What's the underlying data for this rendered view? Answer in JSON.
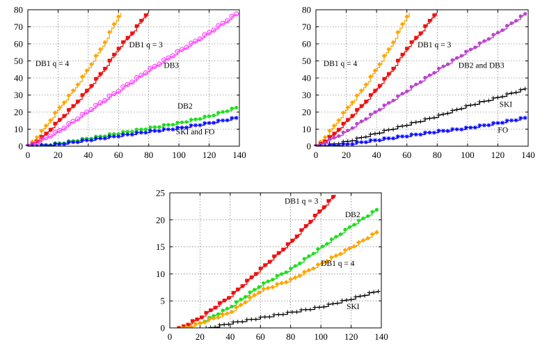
{
  "chart_data": [
    {
      "type": "line",
      "xlim": [
        0,
        140
      ],
      "ylim": [
        0,
        80
      ],
      "xticks": [
        0,
        20,
        40,
        60,
        80,
        100,
        120,
        140
      ],
      "yticks": [
        0,
        10,
        20,
        30,
        40,
        50,
        60,
        70,
        80
      ],
      "grid": true,
      "series": [
        {
          "color": "#ffa500",
          "marker": "diamond",
          "points": [
            [
              0,
              0
            ],
            [
              10,
              10
            ],
            [
              20,
              22
            ],
            [
              30,
              33
            ],
            [
              40,
              46
            ],
            [
              50,
              60
            ],
            [
              57,
              72
            ],
            [
              62,
              80
            ]
          ]
        },
        {
          "color": "#ee1111",
          "marker": "square",
          "points": [
            [
              0,
              0
            ],
            [
              10,
              6
            ],
            [
              20,
              15
            ],
            [
              30,
              24
            ],
            [
              40,
              34
            ],
            [
              50,
              45
            ],
            [
              60,
              58
            ],
            [
              70,
              68
            ],
            [
              80,
              80
            ]
          ]
        },
        {
          "color": "#ff44ff",
          "marker": "circle-open",
          "points": [
            [
              0,
              0
            ],
            [
              20,
              9
            ],
            [
              40,
              21
            ],
            [
              60,
              33
            ],
            [
              80,
              45
            ],
            [
              100,
              56
            ],
            [
              120,
              67
            ],
            [
              138,
              78
            ]
          ]
        },
        {
          "color": "#22dd22",
          "marker": "circle",
          "points": [
            [
              0,
              0
            ],
            [
              20,
              2
            ],
            [
              40,
              5
            ],
            [
              60,
              8
            ],
            [
              80,
              11
            ],
            [
              100,
              14
            ],
            [
              120,
              18
            ],
            [
              138,
              23
            ]
          ]
        },
        {
          "color": "#0000ff",
          "marker": "star",
          "points": [
            [
              0,
              0
            ],
            [
              20,
              1.5
            ],
            [
              40,
              4
            ],
            [
              60,
              6.5
            ],
            [
              80,
              9
            ],
            [
              100,
              11
            ],
            [
              120,
              14
            ],
            [
              138,
              17
            ]
          ]
        }
      ],
      "annotations": [
        {
          "text": "DB1 q = 4",
          "x": 5,
          "y": 47
        },
        {
          "text": "DB1 q = 3",
          "x": 67,
          "y": 58
        },
        {
          "text": "DB3",
          "x": 90,
          "y": 46
        },
        {
          "text": "DB2",
          "x": 99,
          "y": 22
        },
        {
          "text": "SKI and FO",
          "x": 98,
          "y": 7
        }
      ]
    },
    {
      "type": "line",
      "xlim": [
        0,
        140
      ],
      "ylim": [
        0,
        80
      ],
      "xticks": [
        0,
        20,
        40,
        60,
        80,
        100,
        120,
        140
      ],
      "yticks": [
        0,
        10,
        20,
        30,
        40,
        50,
        60,
        70,
        80
      ],
      "grid": true,
      "series": [
        {
          "color": "#ffa500",
          "marker": "diamond",
          "points": [
            [
              0,
              0
            ],
            [
              10,
              10
            ],
            [
              20,
              22
            ],
            [
              30,
              33
            ],
            [
              40,
              46
            ],
            [
              50,
              60
            ],
            [
              57,
              72
            ],
            [
              62,
              80
            ]
          ]
        },
        {
          "color": "#ee1111",
          "marker": "square",
          "points": [
            [
              0,
              0
            ],
            [
              10,
              6
            ],
            [
              20,
              15
            ],
            [
              30,
              24
            ],
            [
              40,
              34
            ],
            [
              50,
              45
            ],
            [
              60,
              58
            ],
            [
              70,
              68
            ],
            [
              80,
              80
            ]
          ]
        },
        {
          "color": "#bb44cc",
          "marker": "circle",
          "points": [
            [
              0,
              0
            ],
            [
              20,
              9
            ],
            [
              40,
              21
            ],
            [
              60,
              33
            ],
            [
              80,
              45
            ],
            [
              100,
              56
            ],
            [
              120,
              67
            ],
            [
              138,
              78
            ]
          ]
        },
        {
          "color": "#000000",
          "marker": "plus",
          "points": [
            [
              0,
              0
            ],
            [
              20,
              3
            ],
            [
              40,
              8
            ],
            [
              60,
              13
            ],
            [
              80,
              18
            ],
            [
              100,
              24
            ],
            [
              120,
              29
            ],
            [
              138,
              34
            ]
          ]
        },
        {
          "color": "#0000ff",
          "marker": "star",
          "points": [
            [
              0,
              0
            ],
            [
              20,
              1.5
            ],
            [
              40,
              4
            ],
            [
              60,
              6.5
            ],
            [
              80,
              9
            ],
            [
              100,
              11
            ],
            [
              120,
              14
            ],
            [
              138,
              17
            ]
          ]
        }
      ],
      "annotations": [
        {
          "text": "DB1 q = 4",
          "x": 5,
          "y": 47
        },
        {
          "text": "DB1 q = 3",
          "x": 67,
          "y": 58
        },
        {
          "text": "DB2 and DB3",
          "x": 94,
          "y": 46
        },
        {
          "text": "SKI",
          "x": 121,
          "y": 23
        },
        {
          "text": "FO",
          "x": 120,
          "y": 8
        }
      ]
    },
    {
      "type": "line",
      "xlim": [
        0,
        140
      ],
      "ylim": [
        0,
        25
      ],
      "xticks": [
        0,
        20,
        40,
        60,
        80,
        100,
        120,
        140
      ],
      "yticks": [
        0,
        5,
        10,
        15,
        20,
        25
      ],
      "grid": true,
      "series": [
        {
          "color": "#ee1111",
          "marker": "square",
          "points": [
            [
              6,
              0
            ],
            [
              20,
              2
            ],
            [
              40,
              6
            ],
            [
              60,
              11
            ],
            [
              80,
              16
            ],
            [
              100,
              22
            ],
            [
              110,
              25
            ]
          ]
        },
        {
          "color": "#22dd22",
          "marker": "circle",
          "points": [
            [
              8,
              0
            ],
            [
              20,
              1
            ],
            [
              40,
              4
            ],
            [
              60,
              8
            ],
            [
              80,
              11
            ],
            [
              100,
              15
            ],
            [
              120,
              19
            ],
            [
              137,
              22
            ]
          ]
        },
        {
          "color": "#ffa500",
          "marker": "diamond",
          "points": [
            [
              8,
              0
            ],
            [
              20,
              1
            ],
            [
              40,
              3
            ],
            [
              60,
              7
            ],
            [
              80,
              9
            ],
            [
              100,
              12
            ],
            [
              120,
              15
            ],
            [
              138,
              18
            ]
          ]
        },
        {
          "color": "#000000",
          "marker": "plus",
          "points": [
            [
              24,
              0
            ],
            [
              40,
              1
            ],
            [
              60,
              2
            ],
            [
              80,
              3
            ],
            [
              100,
              4
            ],
            [
              120,
              5.5
            ],
            [
              138,
              7
            ]
          ]
        }
      ],
      "annotations": [
        {
          "text": "DB1 q = 3",
          "x": 76,
          "y": 23
        },
        {
          "text": "DB2",
          "x": 116,
          "y": 20.5
        },
        {
          "text": "DB1 q = 4",
          "x": 100,
          "y": 11.5
        },
        {
          "text": "SKI",
          "x": 117,
          "y": 3.5
        }
      ]
    }
  ]
}
